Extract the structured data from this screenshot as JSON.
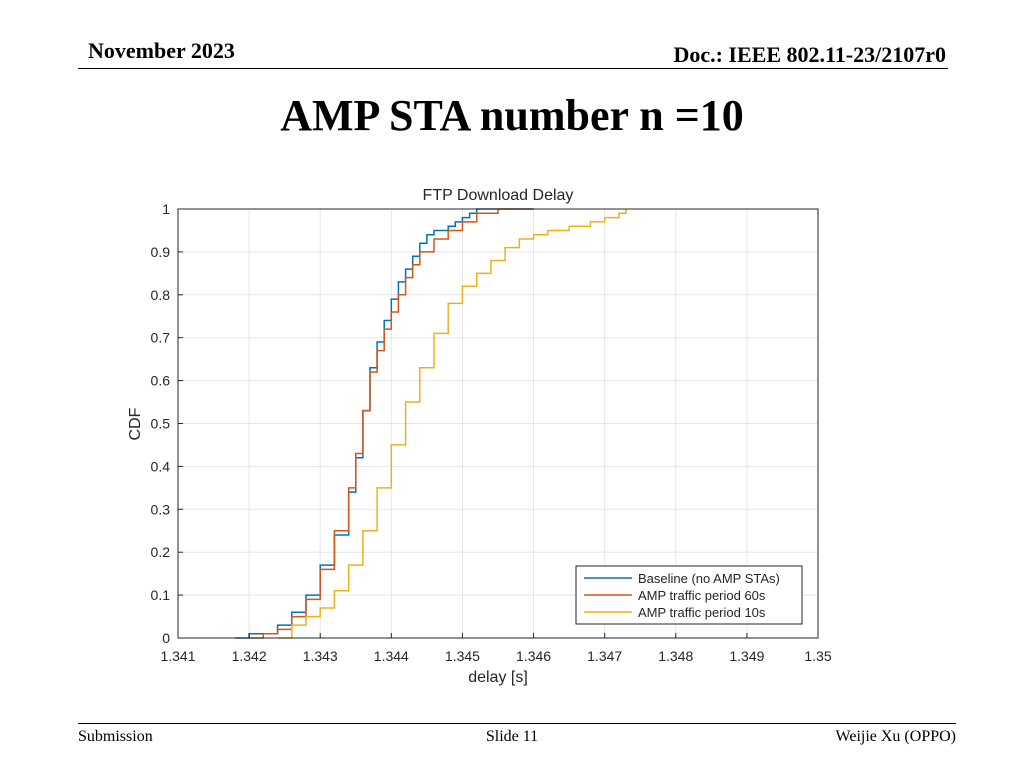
{
  "header": {
    "date": "November 2023",
    "doc": "Doc.: IEEE 802.11-23/2107r0"
  },
  "slide": {
    "title": "AMP STA number n =10"
  },
  "footer": {
    "left": "Submission",
    "center": "Slide 11",
    "right": "Weijie Xu (OPPO)"
  },
  "chart_data": {
    "type": "line",
    "title": "FTP Download Delay",
    "xlabel": "delay [s]",
    "ylabel": "CDF",
    "xlim": [
      1.341,
      1.35
    ],
    "ylim": [
      0,
      1
    ],
    "xticks": [
      "1.341",
      "1.342",
      "1.343",
      "1.344",
      "1.345",
      "1.346",
      "1.347",
      "1.348",
      "1.349",
      "1.35"
    ],
    "yticks": [
      "0",
      "0.1",
      "0.2",
      "0.3",
      "0.4",
      "0.5",
      "0.6",
      "0.7",
      "0.8",
      "0.9",
      "1"
    ],
    "grid": true,
    "legend_position": "bottom-right",
    "series": [
      {
        "name": "Baseline (no AMP STAs)",
        "color": "#0072BD",
        "x": [
          1.3418,
          1.342,
          1.3422,
          1.3424,
          1.3426,
          1.3428,
          1.343,
          1.3432,
          1.3434,
          1.3435,
          1.3436,
          1.3437,
          1.3438,
          1.3439,
          1.344,
          1.3441,
          1.3442,
          1.3443,
          1.3444,
          1.3445,
          1.3446,
          1.3448,
          1.3449,
          1.345,
          1.3451,
          1.3452,
          1.3455,
          1.346
        ],
        "y": [
          0.0,
          0.01,
          0.01,
          0.03,
          0.06,
          0.1,
          0.17,
          0.24,
          0.34,
          0.42,
          0.53,
          0.63,
          0.69,
          0.74,
          0.79,
          0.83,
          0.86,
          0.89,
          0.92,
          0.94,
          0.95,
          0.96,
          0.97,
          0.98,
          0.99,
          1.0,
          1.0,
          1.0
        ]
      },
      {
        "name": "AMP traffic period 60s",
        "color": "#D95319",
        "x": [
          1.342,
          1.3422,
          1.3424,
          1.3426,
          1.3428,
          1.343,
          1.3432,
          1.3434,
          1.3435,
          1.3436,
          1.3437,
          1.3438,
          1.3439,
          1.344,
          1.3441,
          1.3442,
          1.3443,
          1.3444,
          1.3446,
          1.3448,
          1.345,
          1.3452,
          1.3455,
          1.346
        ],
        "y": [
          0.0,
          0.01,
          0.02,
          0.05,
          0.09,
          0.16,
          0.25,
          0.35,
          0.43,
          0.53,
          0.62,
          0.67,
          0.72,
          0.76,
          0.8,
          0.84,
          0.87,
          0.9,
          0.93,
          0.95,
          0.97,
          0.99,
          1.0,
          1.0
        ]
      },
      {
        "name": "AMP traffic period 10s",
        "color": "#EDB120",
        "x": [
          1.3424,
          1.3426,
          1.3428,
          1.343,
          1.3432,
          1.3434,
          1.3436,
          1.3438,
          1.344,
          1.3442,
          1.3444,
          1.3446,
          1.3448,
          1.345,
          1.3452,
          1.3454,
          1.3456,
          1.3458,
          1.346,
          1.3462,
          1.3465,
          1.3468,
          1.347,
          1.3472,
          1.3473
        ],
        "y": [
          0.0,
          0.03,
          0.05,
          0.07,
          0.11,
          0.17,
          0.25,
          0.35,
          0.45,
          0.55,
          0.63,
          0.71,
          0.78,
          0.82,
          0.85,
          0.88,
          0.91,
          0.93,
          0.94,
          0.95,
          0.96,
          0.97,
          0.98,
          0.99,
          1.0
        ]
      }
    ]
  }
}
